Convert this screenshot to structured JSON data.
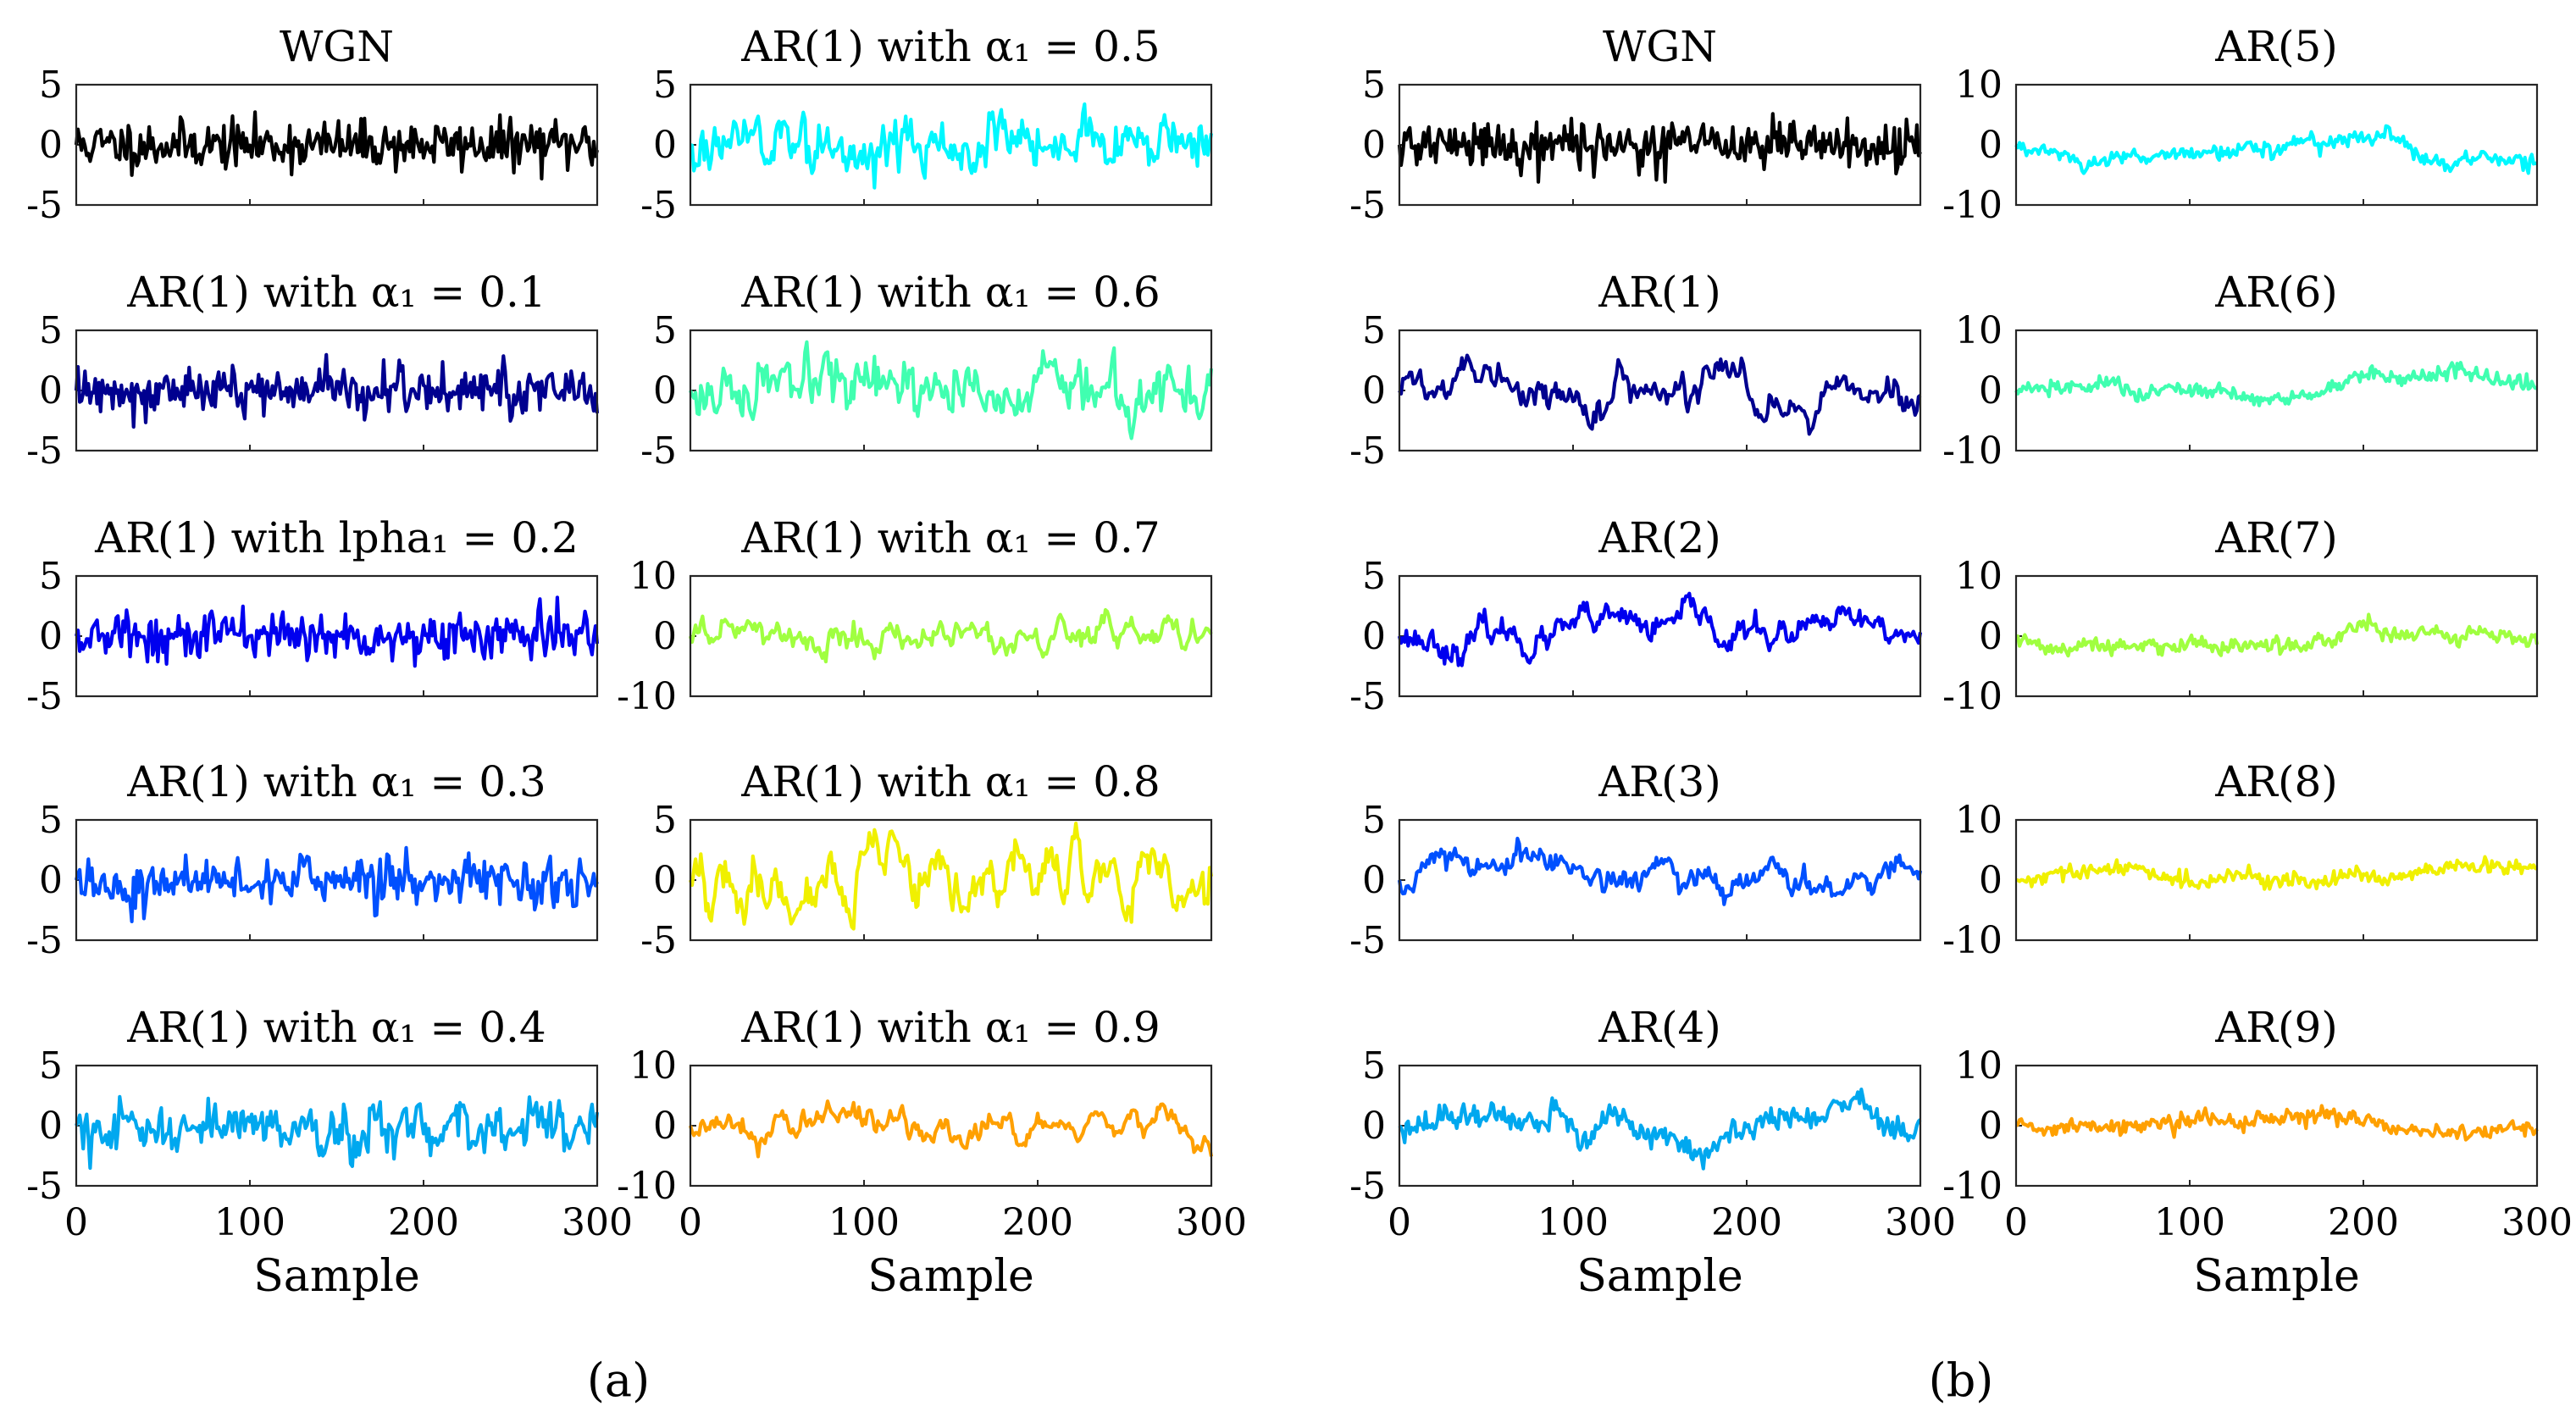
{
  "x_axis": {
    "xlim": [
      0,
      300
    ],
    "ticks": [
      "0",
      "100",
      "200",
      "300"
    ],
    "xlabel": "Sample"
  },
  "panels": [
    {
      "label": "(a)"
    },
    {
      "label": "(b)"
    }
  ],
  "chart_data": [
    {
      "type": "line",
      "panel": "a",
      "column": 0,
      "row": 0,
      "title": "WGN",
      "ylim": [
        -5,
        5
      ],
      "yticks": [
        "5",
        "0",
        "-5"
      ],
      "color": "#000000",
      "process": "wgn",
      "coeffs": [],
      "noise": 1.0,
      "seed": 11,
      "series": [
        {
          "name": "WGN"
        }
      ]
    },
    {
      "type": "line",
      "panel": "a",
      "column": 0,
      "row": 1,
      "title": "AR(1) with α₁ = 0.1",
      "ylim": [
        -5,
        5
      ],
      "yticks": [
        "5",
        "0",
        "-5"
      ],
      "color": "#00008f",
      "process": "ar",
      "coeffs": [
        0.1
      ],
      "noise": 1.0,
      "seed": 12,
      "series": [
        {
          "name": "AR(1) α1=0.1"
        }
      ]
    },
    {
      "type": "line",
      "panel": "a",
      "column": 0,
      "row": 2,
      "title": "AR(1) with lpha₁ = 0.2",
      "ylim": [
        -5,
        5
      ],
      "yticks": [
        "5",
        "0",
        "-5"
      ],
      "color": "#0000ef",
      "process": "ar",
      "coeffs": [
        0.2
      ],
      "noise": 1.0,
      "seed": 13,
      "series": [
        {
          "name": "AR(1) α1=0.2"
        }
      ]
    },
    {
      "type": "line",
      "panel": "a",
      "column": 0,
      "row": 3,
      "title": "AR(1) with α₁ = 0.3",
      "ylim": [
        -5,
        5
      ],
      "yticks": [
        "5",
        "0",
        "-5"
      ],
      "color": "#0050ff",
      "process": "ar",
      "coeffs": [
        0.3
      ],
      "noise": 1.0,
      "seed": 14,
      "series": [
        {
          "name": "AR(1) α1=0.3"
        }
      ]
    },
    {
      "type": "line",
      "panel": "a",
      "column": 0,
      "row": 4,
      "title": "AR(1) with α₁ = 0.4",
      "ylim": [
        -5,
        5
      ],
      "yticks": [
        "5",
        "0",
        "-5"
      ],
      "color": "#00a8ef",
      "process": "ar",
      "coeffs": [
        0.4
      ],
      "noise": 1.0,
      "seed": 15,
      "series": [
        {
          "name": "AR(1) α1=0.4"
        }
      ]
    },
    {
      "type": "line",
      "panel": "a",
      "column": 1,
      "row": 0,
      "title": "AR(1) with α₁ = 0.5",
      "ylim": [
        -5,
        5
      ],
      "yticks": [
        "5",
        "0",
        "-5"
      ],
      "color": "#00f8ff",
      "process": "ar",
      "coeffs": [
        0.5
      ],
      "noise": 1.0,
      "seed": 16,
      "series": [
        {
          "name": "AR(1) α1=0.5"
        }
      ]
    },
    {
      "type": "line",
      "panel": "a",
      "column": 1,
      "row": 1,
      "title": "AR(1) with α₁ = 0.6",
      "ylim": [
        -5,
        5
      ],
      "yticks": [
        "5",
        "0",
        "-5"
      ],
      "color": "#40ffb0",
      "process": "ar",
      "coeffs": [
        0.6
      ],
      "noise": 1.0,
      "seed": 17,
      "series": [
        {
          "name": "AR(1) α1=0.6"
        }
      ]
    },
    {
      "type": "line",
      "panel": "a",
      "column": 1,
      "row": 2,
      "title": "AR(1) with α₁ = 0.7",
      "ylim": [
        -10,
        10
      ],
      "yticks": [
        "10",
        "0",
        "-10"
      ],
      "color": "#a0ff40",
      "process": "ar",
      "coeffs": [
        0.7
      ],
      "noise": 1.0,
      "seed": 18,
      "series": [
        {
          "name": "AR(1) α1=0.7"
        }
      ]
    },
    {
      "type": "line",
      "panel": "a",
      "column": 1,
      "row": 3,
      "title": "AR(1) with α₁ = 0.8",
      "ylim": [
        -5,
        5
      ],
      "yticks": [
        "5",
        "0",
        "-5"
      ],
      "color": "#f0f000",
      "process": "ar",
      "coeffs": [
        0.8
      ],
      "noise": 1.0,
      "seed": 19,
      "series": [
        {
          "name": "AR(1) α1=0.8"
        }
      ]
    },
    {
      "type": "line",
      "panel": "a",
      "column": 1,
      "row": 4,
      "title": "AR(1) with α₁ = 0.9",
      "ylim": [
        -10,
        10
      ],
      "yticks": [
        "10",
        "0",
        "-10"
      ],
      "color": "#ffa000",
      "process": "ar",
      "coeffs": [
        0.9
      ],
      "noise": 1.0,
      "seed": 20,
      "series": [
        {
          "name": "AR(1) α1=0.9"
        }
      ]
    },
    {
      "type": "line",
      "panel": "b",
      "column": 0,
      "row": 0,
      "title": "WGN",
      "ylim": [
        -5,
        5
      ],
      "yticks": [
        "5",
        "0",
        "-5"
      ],
      "color": "#000000",
      "process": "wgn",
      "coeffs": [],
      "noise": 1.0,
      "seed": 21,
      "series": [
        {
          "name": "WGN"
        }
      ]
    },
    {
      "type": "line",
      "panel": "b",
      "column": 0,
      "row": 1,
      "title": "AR(1)",
      "ylim": [
        -5,
        5
      ],
      "yticks": [
        "5",
        "0",
        "-5"
      ],
      "color": "#00008f",
      "process": "ar",
      "coeffs": [
        0.88
      ],
      "noise": 0.55,
      "seed": 22,
      "series": [
        {
          "name": "AR(1)"
        }
      ]
    },
    {
      "type": "line",
      "panel": "b",
      "column": 0,
      "row": 2,
      "title": "AR(2)",
      "ylim": [
        -5,
        5
      ],
      "yticks": [
        "5",
        "0",
        "-5"
      ],
      "color": "#0000ef",
      "process": "ar",
      "coeffs": [
        0.6,
        0.3
      ],
      "noise": 0.55,
      "seed": 23,
      "series": [
        {
          "name": "AR(2)"
        }
      ]
    },
    {
      "type": "line",
      "panel": "b",
      "column": 0,
      "row": 3,
      "title": "AR(3)",
      "ylim": [
        -5,
        5
      ],
      "yticks": [
        "5",
        "0",
        "-5"
      ],
      "color": "#0050ff",
      "process": "ar",
      "coeffs": [
        0.5,
        0.25,
        0.15
      ],
      "noise": 0.55,
      "seed": 24,
      "series": [
        {
          "name": "AR(3)"
        }
      ]
    },
    {
      "type": "line",
      "panel": "b",
      "column": 0,
      "row": 4,
      "title": "AR(4)",
      "ylim": [
        -5,
        5
      ],
      "yticks": [
        "5",
        "0",
        "-5"
      ],
      "color": "#00a8ef",
      "process": "ar",
      "coeffs": [
        0.45,
        0.2,
        0.15,
        0.12
      ],
      "noise": 0.55,
      "seed": 25,
      "series": [
        {
          "name": "AR(4)"
        }
      ]
    },
    {
      "type": "line",
      "panel": "b",
      "column": 1,
      "row": 0,
      "title": "AR(5)",
      "ylim": [
        -10,
        10
      ],
      "yticks": [
        "10",
        "0",
        "-10"
      ],
      "color": "#00f8ff",
      "process": "ar",
      "coeffs": [
        0.4,
        0.2,
        0.15,
        0.1,
        0.1
      ],
      "noise": 0.7,
      "seed": 26,
      "series": [
        {
          "name": "AR(5)"
        }
      ]
    },
    {
      "type": "line",
      "panel": "b",
      "column": 1,
      "row": 1,
      "title": "AR(6)",
      "ylim": [
        -10,
        10
      ],
      "yticks": [
        "10",
        "0",
        "-10"
      ],
      "color": "#40ffb0",
      "process": "ar",
      "coeffs": [
        0.35,
        0.2,
        0.15,
        0.1,
        0.08,
        0.07
      ],
      "noise": 0.7,
      "seed": 27,
      "series": [
        {
          "name": "AR(6)"
        }
      ]
    },
    {
      "type": "line",
      "panel": "b",
      "column": 1,
      "row": 2,
      "title": "AR(7)",
      "ylim": [
        -10,
        10
      ],
      "yticks": [
        "10",
        "0",
        "-10"
      ],
      "color": "#a0ff40",
      "process": "ar",
      "coeffs": [
        0.35,
        0.18,
        0.12,
        0.1,
        0.08,
        0.06,
        0.06
      ],
      "noise": 0.7,
      "seed": 28,
      "series": [
        {
          "name": "AR(7)"
        }
      ]
    },
    {
      "type": "line",
      "panel": "b",
      "column": 1,
      "row": 3,
      "title": "AR(8)",
      "ylim": [
        -10,
        10
      ],
      "yticks": [
        "10",
        "0",
        "-10"
      ],
      "color": "#f0f000",
      "process": "ar",
      "coeffs": [
        0.3,
        0.18,
        0.12,
        0.1,
        0.08,
        0.07,
        0.06,
        0.05
      ],
      "noise": 0.7,
      "seed": 29,
      "series": [
        {
          "name": "AR(8)"
        }
      ]
    },
    {
      "type": "line",
      "panel": "b",
      "column": 1,
      "row": 4,
      "title": "AR(9)",
      "ylim": [
        -10,
        10
      ],
      "yticks": [
        "10",
        "0",
        "-10"
      ],
      "color": "#ffa000",
      "process": "ar",
      "coeffs": [
        0.3,
        0.15,
        0.12,
        0.1,
        0.08,
        0.07,
        0.06,
        0.05,
        0.04
      ],
      "noise": 0.7,
      "seed": 30,
      "series": [
        {
          "name": "AR(9)"
        }
      ]
    }
  ]
}
